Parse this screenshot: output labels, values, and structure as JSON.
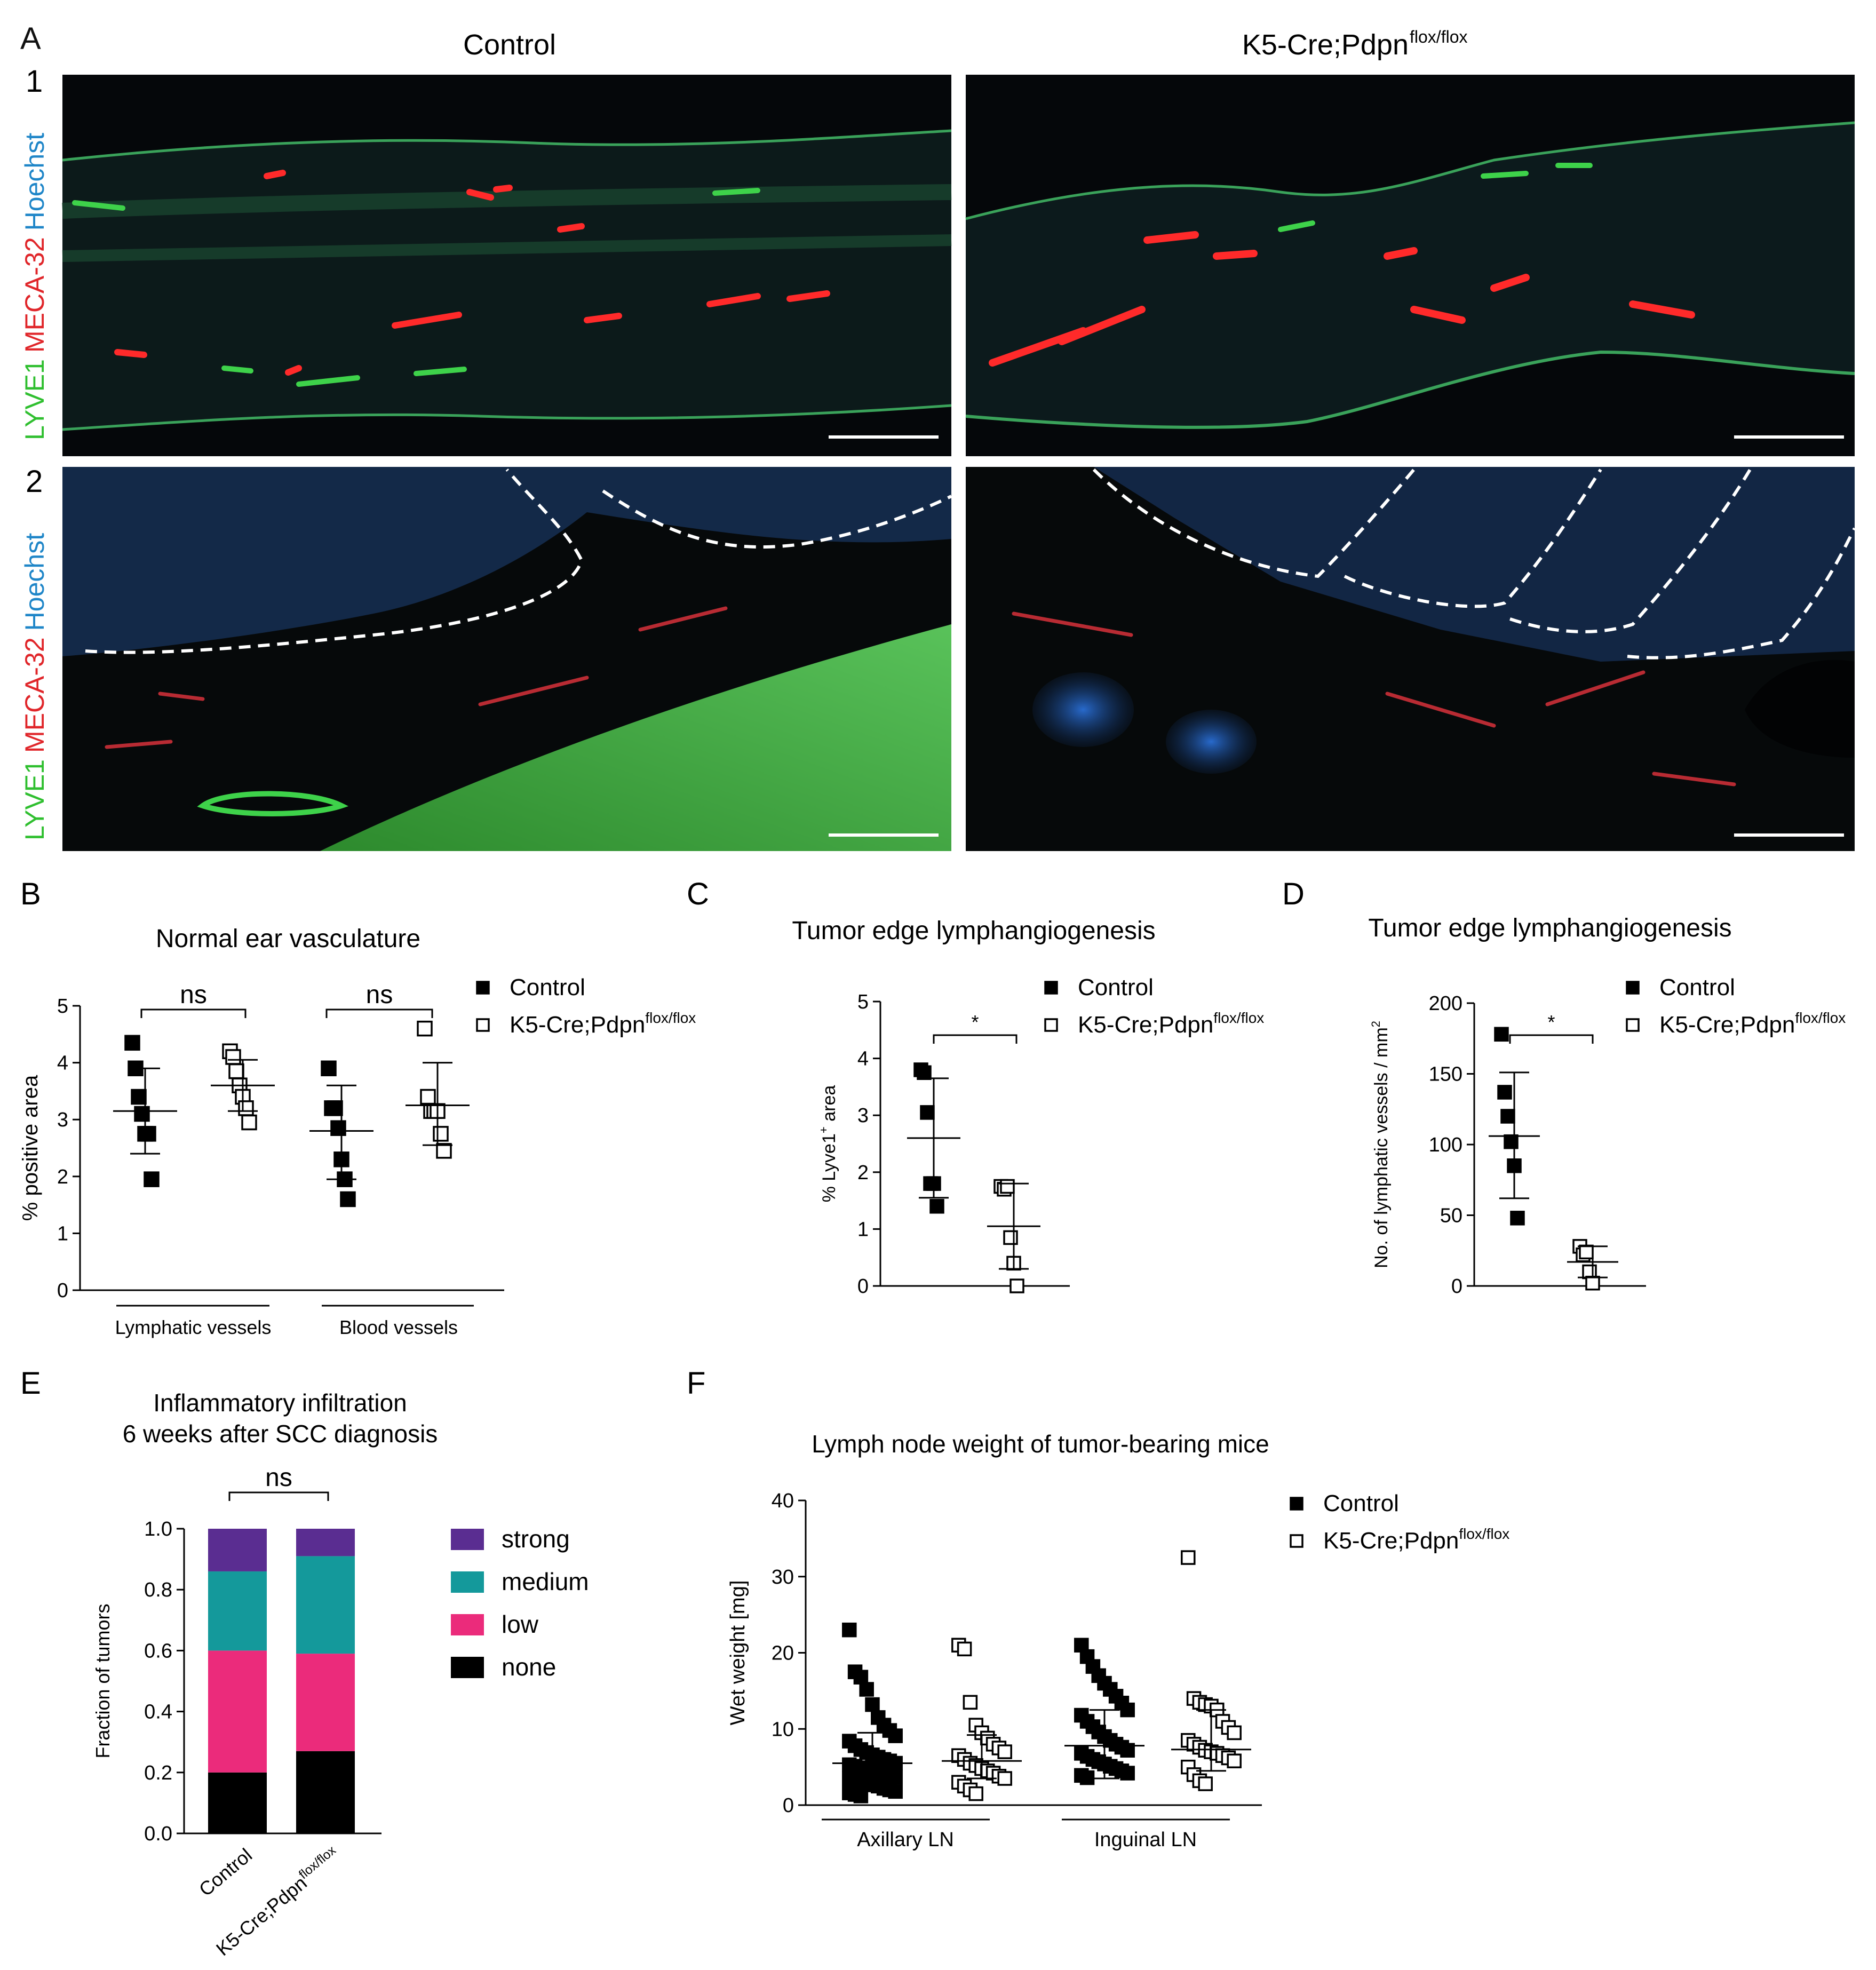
{
  "panel_letters": {
    "A": "A",
    "B": "B",
    "C": "C",
    "D": "D",
    "E": "E",
    "F": "F"
  },
  "panelA": {
    "col_headers": [
      "Control",
      "K5-Cre;Pdpn"
    ],
    "col_header_sup": "flox/flox",
    "row_numbers": [
      "1",
      "2"
    ],
    "stain_labels": [
      {
        "text": "LYVE1",
        "color": "#2fbf2f"
      },
      {
        "text": "MECA-32",
        "color": "#e0262a"
      },
      {
        "text": "Hoechst",
        "color": "#1f86c8"
      }
    ]
  },
  "chart_data": [
    {
      "id": "B",
      "type": "scatter",
      "title": "Normal ear vasculature",
      "ylabel": "% positive area",
      "ylim": [
        0,
        5
      ],
      "yticks": [
        "0",
        "1",
        "2",
        "3",
        "4",
        "5"
      ],
      "groups": [
        "Lymphatic vessels",
        "Blood vessels"
      ],
      "legend": [
        {
          "name": "Control",
          "marker": "filled-square"
        },
        {
          "name": "K5-Cre;Pdpn",
          "sup": "flox/flox",
          "marker": "open-square"
        }
      ],
      "significance": [
        "ns",
        "ns"
      ],
      "series": [
        {
          "name": "Control",
          "group": "Lymphatic vessels",
          "values": [
            4.35,
            3.9,
            3.4,
            3.1,
            2.75,
            2.75,
            1.95
          ],
          "mean": 3.15,
          "sd_low": 2.4,
          "sd_high": 3.9
        },
        {
          "name": "K5-Cre;Pdpn flox/flox",
          "group": "Lymphatic vessels",
          "values": [
            4.2,
            4.1,
            3.85,
            3.6,
            3.4,
            3.2,
            2.95
          ],
          "mean": 3.6,
          "sd_low": 3.15,
          "sd_high": 4.05
        },
        {
          "name": "Control",
          "group": "Blood vessels",
          "values": [
            3.9,
            3.2,
            3.2,
            2.85,
            2.3,
            1.95,
            1.6
          ],
          "mean": 2.8,
          "sd_low": 1.95,
          "sd_high": 3.6
        },
        {
          "name": "K5-Cre;Pdpn flox/flox",
          "group": "Blood vessels",
          "values": [
            4.6,
            3.4,
            3.15,
            3.15,
            3.15,
            2.75,
            2.45
          ],
          "mean": 3.25,
          "sd_low": 2.55,
          "sd_high": 4.0
        }
      ]
    },
    {
      "id": "C",
      "type": "scatter",
      "title": "Tumor edge lymphangiogenesis",
      "ylabel": "% Lyve1",
      "ylabel_sup": "+",
      "ylabel_tail": " area",
      "ylim": [
        0,
        5
      ],
      "yticks": [
        "0",
        "1",
        "2",
        "3",
        "4",
        "5"
      ],
      "legend": [
        {
          "name": "Control",
          "marker": "filled-square"
        },
        {
          "name": "K5-Cre;Pdpn",
          "sup": "flox/flox",
          "marker": "open-square"
        }
      ],
      "significance": [
        "*"
      ],
      "series": [
        {
          "name": "Control",
          "values": [
            3.8,
            3.75,
            3.05,
            1.8,
            1.8,
            1.4
          ],
          "mean": 2.6,
          "sd_low": 1.55,
          "sd_high": 3.65
        },
        {
          "name": "K5-Cre;Pdpn flox/flox",
          "values": [
            1.75,
            1.7,
            1.75,
            0.85,
            0.4,
            0.0
          ],
          "mean": 1.05,
          "sd_low": 0.3,
          "sd_high": 1.8
        }
      ]
    },
    {
      "id": "D",
      "type": "scatter",
      "title": "Tumor edge lymphangiogenesis",
      "ylabel": "No. of lymphatic vessels / mm",
      "ylabel_sup": "2",
      "ylim": [
        0,
        200
      ],
      "yticks": [
        "0",
        "50",
        "100",
        "150",
        "200"
      ],
      "legend": [
        {
          "name": "Control",
          "marker": "filled-square"
        },
        {
          "name": "K5-Cre;Pdpn",
          "sup": "flox/flox",
          "marker": "open-square"
        }
      ],
      "significance": [
        "*"
      ],
      "series": [
        {
          "name": "Control",
          "values": [
            178,
            137,
            120,
            102,
            85,
            48
          ],
          "mean": 106,
          "sd_low": 62,
          "sd_high": 151
        },
        {
          "name": "K5-Cre;Pdpn flox/flox",
          "values": [
            28,
            22,
            24,
            10,
            2
          ],
          "mean": 17,
          "sd_low": 6,
          "sd_high": 28
        }
      ]
    },
    {
      "id": "E",
      "type": "bar",
      "title": "Inflammatory infiltration",
      "subtitle": "6 weeks after SCC diagnosis",
      "ylabel": "Fraction of tumors",
      "ylim": [
        0,
        1.0
      ],
      "yticks": [
        "0.0",
        "0.2",
        "0.4",
        "0.6",
        "0.8",
        "1.0"
      ],
      "categories": [
        "Control",
        "K5-Cre;Pdpn"
      ],
      "category_sup": [
        "",
        "flox/flox"
      ],
      "significance": [
        "ns"
      ],
      "series": [
        {
          "name": "none",
          "color": "#000000",
          "values": [
            0.2,
            0.27
          ]
        },
        {
          "name": "low",
          "color": "#eb2b7b",
          "values": [
            0.4,
            0.32
          ]
        },
        {
          "name": "medium",
          "color": "#14999b",
          "values": [
            0.26,
            0.32
          ]
        },
        {
          "name": "strong",
          "color": "#5a2d91",
          "values": [
            0.14,
            0.09
          ]
        }
      ],
      "legend_order": [
        "strong",
        "medium",
        "low",
        "none"
      ]
    },
    {
      "id": "F",
      "type": "scatter",
      "title": "Lymph node weight of tumor-bearing mice",
      "ylabel": "Wet weight [mg]",
      "ylim": [
        0,
        40
      ],
      "yticks": [
        "0",
        "10",
        "20",
        "30",
        "40"
      ],
      "groups": [
        "Axillary LN",
        "Inguinal LN"
      ],
      "legend": [
        {
          "name": "Control",
          "marker": "filled-square"
        },
        {
          "name": "K5-Cre;Pdpn",
          "sup": "flox/flox",
          "marker": "open-square"
        }
      ],
      "series": [
        {
          "name": "Control",
          "group": "Axillary LN",
          "values": [
            23,
            17.5,
            16.8,
            15.2,
            13.2,
            11.5,
            10.5,
            9.8,
            9.1,
            8.4,
            7.8,
            7.3,
            6.9,
            6.6,
            6.3,
            6.0,
            5.8,
            5.5,
            5.3,
            5.1,
            4.9,
            4.7,
            4.5,
            4.3,
            4.1,
            3.9,
            3.7,
            3.5,
            3.3,
            3.1,
            2.9,
            2.7,
            2.5,
            2.2,
            2.0,
            1.8,
            1.6,
            1.4,
            1.2
          ],
          "mean": 5.5,
          "sd_low": 1.8,
          "sd_high": 9.5
        },
        {
          "name": "K5-Cre;Pdpn flox/flox",
          "group": "Axillary LN",
          "values": [
            21,
            20.5,
            13.5,
            10.5,
            9.5,
            8.8,
            8.0,
            7.5,
            7.0,
            6.5,
            6.0,
            5.5,
            5.2,
            4.8,
            4.5,
            4.2,
            3.8,
            3.5,
            3.0,
            2.5,
            2.0,
            1.5
          ],
          "mean": 5.8,
          "sd_low": 3.5,
          "sd_high": 9.2
        },
        {
          "name": "Control",
          "group": "Inguinal LN",
          "values": [
            21,
            19.5,
            18.2,
            17.0,
            16.0,
            15.2,
            14.3,
            13.4,
            12.5,
            11.8,
            11.0,
            10.3,
            9.6,
            9.0,
            8.5,
            8.0,
            7.6,
            7.2,
            6.8,
            6.4,
            6.0,
            5.7,
            5.4,
            5.1,
            4.8,
            4.5,
            4.2,
            3.9,
            3.6
          ],
          "mean": 7.8,
          "sd_low": 3.5,
          "sd_high": 12.5
        },
        {
          "name": "K5-Cre;Pdpn flox/flox",
          "group": "Inguinal LN",
          "values": [
            32.5,
            14,
            13.5,
            13.2,
            13.0,
            12.5,
            11.0,
            10.2,
            9.5,
            8.5,
            8.0,
            7.6,
            7.2,
            7.0,
            6.8,
            6.5,
            6.2,
            5.8,
            5.0,
            4.0,
            3.2,
            2.8
          ],
          "mean": 7.3,
          "sd_low": 4.5,
          "sd_high": 12.5
        }
      ]
    }
  ]
}
